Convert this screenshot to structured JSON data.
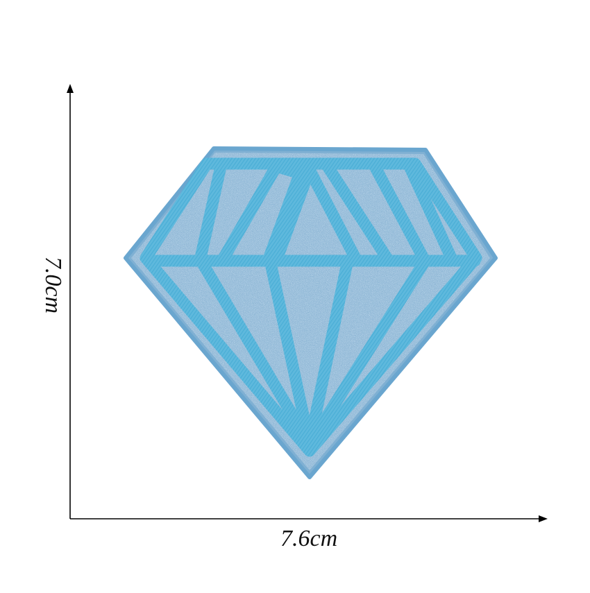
{
  "dimensions": {
    "width_label": "7.6cm",
    "height_label": "7.0cm"
  },
  "product": {
    "colors": {
      "glitter_base": "#8fb7d6",
      "glitter_light": "#c9e0f1",
      "glitter_dark": "#5f8fb6",
      "embroidery": "#5fb9dd",
      "embroidery_shade": "#3ea3cc",
      "axis": "#000000"
    }
  }
}
